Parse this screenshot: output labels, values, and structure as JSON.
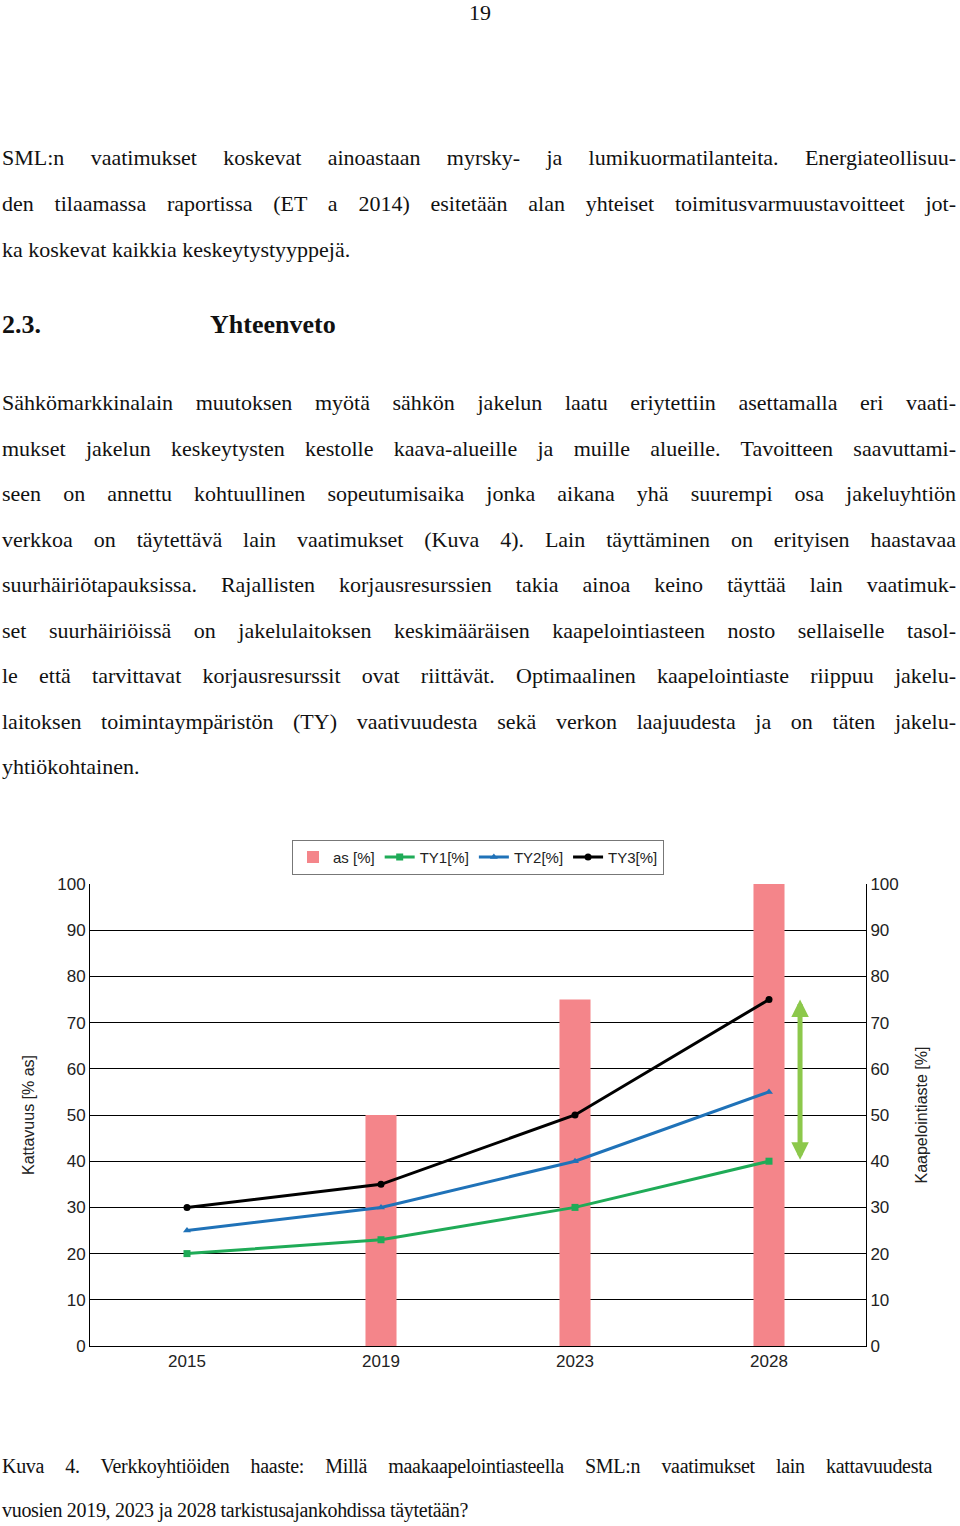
{
  "page": {
    "page_number": "19",
    "intro_lines": [
      "SML:n vaatimukset koskevat ainoastaan myrsky- ja lumikuormatilanteita. Energiateollisuu-",
      "den tilaamassa raportissa (ET a 2014) esitetään alan yhteiset toimitusvarmuustavoitteet jot-",
      "ka koskevat kaikkia keskeytystyyppejä."
    ],
    "heading_number": "2.3.",
    "heading_title": "Yhteenveto",
    "summary_lines": [
      "Sähkömarkkinalain muutoksen myötä sähkön jakelun laatu eriytettiin asettamalla eri vaati-",
      "mukset jakelun keskeytysten kestolle kaava-alueille ja muille alueille. Tavoitteen saavuttami-",
      "seen on annettu kohtuullinen sopeutumisaika jonka aikana yhä suurempi osa jakeluyhtiön",
      "verkkoa on täytettävä lain vaatimukset (Kuva 4). Lain täyttäminen on erityisen haastavaa",
      "suurhäiriötapauksissa. Rajallisten korjausresurssien takia ainoa keino täyttää lain vaatimuk-",
      "set suurhäiriöissä on jakelulaitoksen keskimääräisen kaapelointiasteen nosto sellaiselle tasol-",
      "le että tarvittavat korjausresurssit ovat riittävät. Optimaalinen kaapelointiaste riippuu jakelu-",
      "laitoksen toimintaympäristön (TY) vaativuudesta sekä verkon laajuudesta ja on täten jakelu-",
      "yhtiökohtainen."
    ],
    "caption_lines": [
      "Kuva 4. Verkkoyhtiöiden haaste: Millä maakaapelointiasteella SML:n vaatimukset lain kattavuudesta",
      "vuosien 2019, 2023 ja 2028 tarkistusajankohdissa täytetään?"
    ]
  },
  "chart_data": {
    "type": "bar",
    "y_label": "Kattavuus [% as]",
    "y2_label": "Kaapelointiaste [%]",
    "categories": [
      "2015",
      "2019",
      "2023",
      "2028"
    ],
    "series": [
      {
        "name": "as [%]",
        "type": "bar",
        "color": "#f4858a",
        "values": [
          null,
          50,
          75,
          100
        ]
      },
      {
        "name": "TY1[%]",
        "type": "line",
        "color": "#1fab57",
        "marker": "square",
        "axis": "y2",
        "values": [
          20,
          23,
          30,
          40
        ]
      },
      {
        "name": "TY2[%]",
        "type": "line",
        "color": "#1f72b8",
        "marker": "triangle-up",
        "axis": "y2",
        "values": [
          25,
          30,
          40,
          55
        ]
      },
      {
        "name": "TY3[%]",
        "type": "line",
        "color": "#000000",
        "marker": "circle",
        "axis": "y2",
        "values": [
          30,
          35,
          50,
          75
        ]
      }
    ],
    "ylim": [
      0,
      100
    ],
    "yticks": [
      0,
      10,
      20,
      30,
      40,
      50,
      60,
      70,
      80,
      90,
      100
    ],
    "y2lim": [
      0,
      100
    ],
    "y2ticks": [
      0,
      10,
      20,
      30,
      40,
      50,
      60,
      70,
      80,
      90,
      100
    ],
    "grid": true,
    "legend": "top"
  }
}
